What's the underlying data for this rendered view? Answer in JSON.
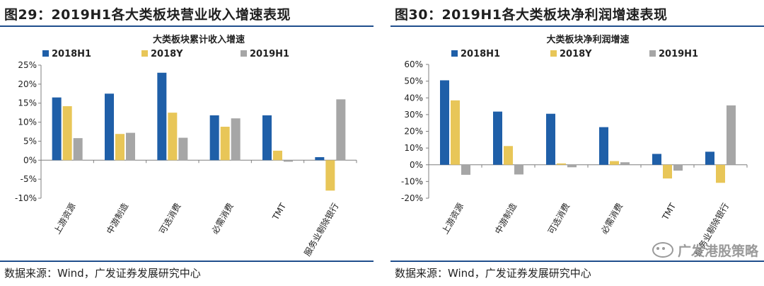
{
  "watermark": {
    "text": "广发港股策略"
  },
  "panels": [
    {
      "figure_title": "图29：2019H1各大类板块营业收入增速表现",
      "source": "数据来源：Wind，广发证券发展研究中心"
    },
    {
      "figure_title": "图30：2019H1各大类板块净利润增速表现",
      "source": "数据来源：Wind，广发证券发展研究中心"
    }
  ],
  "chart_data": [
    {
      "type": "bar",
      "title": "大类板块累计收入增速",
      "categories": [
        "上游资源",
        "中游制造",
        "可选消费",
        "必需消费",
        "TMT",
        "服务业剔除银行"
      ],
      "series": [
        {
          "name": "2018H1",
          "color": "#1f5fa8",
          "values": [
            16.5,
            17.5,
            23.0,
            11.8,
            11.8,
            0.8
          ]
        },
        {
          "name": "2018Y",
          "color": "#e8c658",
          "values": [
            14.2,
            6.9,
            12.5,
            8.8,
            2.5,
            -8.0
          ]
        },
        {
          "name": "2019H1",
          "color": "#a6a6a6",
          "values": [
            5.8,
            7.2,
            5.9,
            11.0,
            -0.4,
            16.0
          ]
        }
      ],
      "ylim": [
        -10,
        25
      ],
      "yticks": [
        25,
        20,
        15,
        10,
        5,
        0,
        -5,
        -10
      ],
      "ytick_labels": [
        "25%",
        "20%",
        "15%",
        "10%",
        "5%",
        "0%",
        "-5%",
        "-10%"
      ],
      "legend_position": "top",
      "grid": false
    },
    {
      "type": "bar",
      "title": "大类板块净利润增速",
      "categories": [
        "上游资源",
        "中游制造",
        "可选消费",
        "必需消费",
        "TMT",
        "服务业剔除银行"
      ],
      "series": [
        {
          "name": "2018H1",
          "color": "#1f5fa8",
          "values": [
            50.5,
            31.8,
            30.5,
            22.5,
            6.5,
            7.8
          ]
        },
        {
          "name": "2018Y",
          "color": "#e8c658",
          "values": [
            38.5,
            11.2,
            0.8,
            2.2,
            -8.2,
            -10.8
          ]
        },
        {
          "name": "2019H1",
          "color": "#a6a6a6",
          "values": [
            -6.0,
            -5.8,
            -1.5,
            1.5,
            -3.5,
            35.5
          ]
        }
      ],
      "ylim": [
        -20,
        60
      ],
      "yticks": [
        60,
        50,
        40,
        30,
        20,
        10,
        0,
        -10,
        -20
      ],
      "ytick_labels": [
        "60%",
        "50%",
        "40%",
        "30%",
        "20%",
        "10%",
        "0%",
        "-10%",
        "-20%"
      ],
      "legend_position": "top",
      "grid": false
    }
  ]
}
